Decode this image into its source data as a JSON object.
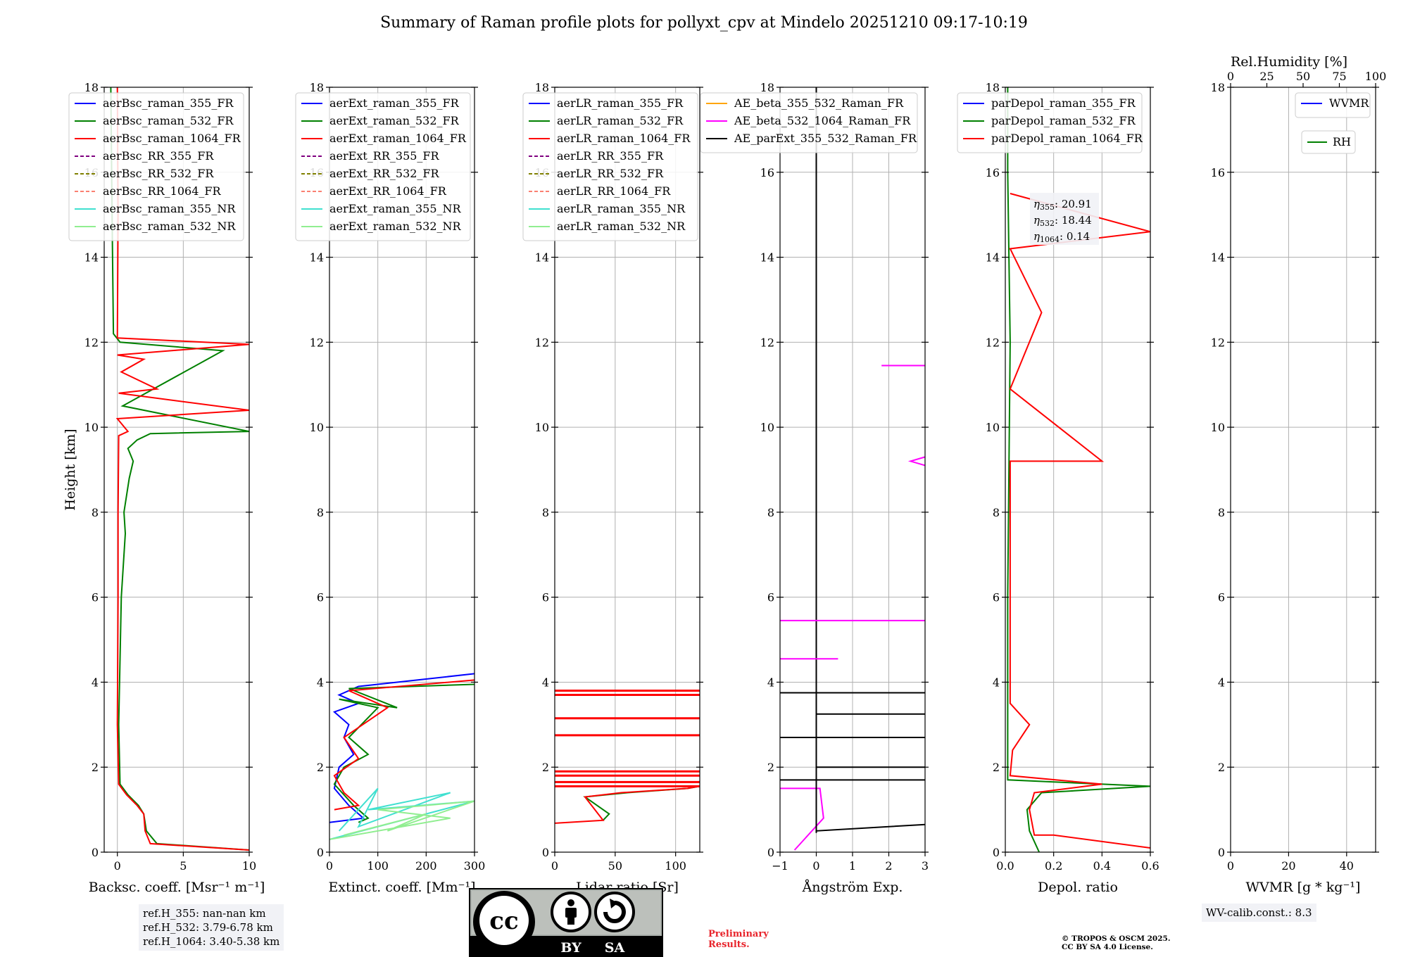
{
  "figure_title": "Summary of Raman profile plots for pollyxt_cpv at Mindelo 20251210 09:17-10:19",
  "colors": {
    "c355": "#0000ff",
    "c532": "#008000",
    "c1064": "#ff0000",
    "rr355": "#800080",
    "rr532": "#808000",
    "rr1064": "#fa8072",
    "nr355": "#40e0d0",
    "nr532": "#90ee90",
    "ae1": "#ffa500",
    "ae2": "#ff00ff",
    "ae3": "#000000",
    "prelim": "#e8242b"
  },
  "chart_data": [
    {
      "type": "line",
      "id": "bsc",
      "xlabel": "Backsc. coeff. [Msr⁻¹ m⁻¹]",
      "ylabel": "Height [km]",
      "xlim": [
        -1,
        10
      ],
      "ylim": [
        0,
        18
      ],
      "xticks": [
        0,
        5,
        10
      ],
      "xtick_labels": [
        "0",
        "5",
        "10"
      ],
      "yticks": [
        0,
        2,
        4,
        6,
        8,
        10,
        12,
        14,
        16,
        18
      ],
      "ytick_labels": [
        "0",
        "2",
        "4",
        "6",
        "8",
        "10",
        "12",
        "14",
        "16",
        "18"
      ],
      "legend": [
        "aerBsc_raman_355_FR",
        "aerBsc_raman_532_FR",
        "aerBsc_raman_1064_FR",
        "aerBsc_RR_355_FR",
        "aerBsc_RR_532_FR",
        "aerBsc_RR_1064_FR",
        "aerBsc_raman_355_NR",
        "aerBsc_raman_532_NR"
      ],
      "series": [
        {
          "name": "aerBsc_raman_532_FR",
          "color": "#008000",
          "x": [
            10,
            3,
            2.2,
            2.0,
            1.6,
            0.8,
            0.2,
            0.1,
            0.3,
            0.6,
            0.5,
            0.9,
            1.2,
            0.8,
            1.5,
            2.5,
            10,
            0.4,
            8,
            0.2,
            -0.3,
            -0.4,
            -0.5
          ],
          "y": [
            0.05,
            0.2,
            0.5,
            0.9,
            1.1,
            1.35,
            1.6,
            3,
            6,
            7.5,
            8,
            8.8,
            9.2,
            9.5,
            9.7,
            9.85,
            9.9,
            10.5,
            11.8,
            12,
            12.2,
            15,
            18
          ]
        },
        {
          "name": "aerBsc_raman_1064_FR",
          "color": "#ff0000",
          "x": [
            10,
            2.5,
            2.1,
            2.0,
            1.5,
            0.7,
            0.1,
            0,
            0.05,
            0.05,
            0.1,
            0.8,
            0,
            10,
            0.1,
            3,
            0.3,
            2,
            0,
            10,
            0,
            0.05,
            0
          ],
          "y": [
            0.05,
            0.2,
            0.5,
            0.9,
            1.1,
            1.35,
            1.6,
            3,
            6,
            8,
            9.8,
            9.9,
            10.2,
            10.4,
            10.8,
            10.9,
            11.3,
            11.6,
            11.7,
            11.95,
            12.1,
            15,
            18
          ]
        }
      ]
    },
    {
      "type": "line",
      "id": "ext",
      "xlabel": "Extinct. coeff. [Mm⁻¹]",
      "xlim": [
        0,
        300
      ],
      "ylim": [
        0,
        18
      ],
      "xticks": [
        0,
        100,
        200,
        300
      ],
      "xtick_labels": [
        "0",
        "100",
        "200",
        "300"
      ],
      "yticks": [
        0,
        2,
        4,
        6,
        8,
        10,
        12,
        14,
        16,
        18
      ],
      "ytick_labels": [
        "0",
        "2",
        "4",
        "6",
        "8",
        "10",
        "12",
        "14",
        "16",
        "18"
      ],
      "legend": [
        "aerExt_raman_355_FR",
        "aerExt_raman_532_FR",
        "aerExt_raman_1064_FR",
        "aerExt_RR_355_FR",
        "aerExt_RR_532_FR",
        "aerExt_RR_1064_FR",
        "aerExt_raman_355_NR",
        "aerExt_raman_532_NR"
      ],
      "series": [
        {
          "name": "aerExt_raman_355_FR",
          "color": "#0000ff",
          "x": [
            0,
            70,
            40,
            10,
            20,
            50,
            30,
            40,
            10,
            60,
            20,
            60,
            300
          ],
          "y": [
            0.7,
            0.8,
            1.1,
            1.5,
            2.0,
            2.3,
            2.7,
            3.0,
            3.3,
            3.5,
            3.7,
            3.9,
            4.2
          ]
        },
        {
          "name": "aerExt_raman_532_FR",
          "color": "#008000",
          "x": [
            60,
            80,
            50,
            10,
            30,
            80,
            40,
            100,
            20,
            140,
            40,
            300
          ],
          "y": [
            0.7,
            0.8,
            1.1,
            1.6,
            2.0,
            2.3,
            2.7,
            3.4,
            3.6,
            3.4,
            3.85,
            3.95
          ]
        },
        {
          "name": "aerExt_raman_1064_FR",
          "color": "#ff0000",
          "x": [
            10,
            60,
            30,
            10,
            60,
            30,
            120,
            40,
            300
          ],
          "y": [
            1.0,
            1.1,
            1.4,
            1.8,
            2.2,
            2.7,
            3.4,
            3.8,
            4.05
          ]
        },
        {
          "name": "aerExt_raman_355_NR",
          "color": "#40e0d0",
          "x": [
            0,
            300,
            80,
            250,
            60,
            100,
            20
          ],
          "y": [
            0.3,
            1.2,
            1.0,
            1.4,
            0.6,
            1.5,
            0.5
          ]
        },
        {
          "name": "aerExt_raman_532_NR",
          "color": "#90ee90",
          "x": [
            0,
            250,
            100,
            300,
            120,
            200,
            30
          ],
          "y": [
            0.3,
            0.8,
            1.0,
            1.2,
            0.5,
            0.9,
            0.4
          ]
        }
      ]
    },
    {
      "type": "line",
      "id": "lr",
      "xlabel": "Lidar ratio [Sr]",
      "xlim": [
        0,
        120
      ],
      "ylim": [
        0,
        18
      ],
      "xticks": [
        0,
        50,
        100
      ],
      "xtick_labels": [
        "0",
        "50",
        "100"
      ],
      "yticks": [
        0,
        2,
        4,
        6,
        8,
        10,
        12,
        14,
        16,
        18
      ],
      "ytick_labels": [
        "0",
        "2",
        "4",
        "6",
        "8",
        "10",
        "12",
        "14",
        "16",
        "18"
      ],
      "legend": [
        "aerLR_raman_355_FR",
        "aerLR_raman_532_FR",
        "aerLR_raman_1064_FR",
        "aerLR_RR_355_FR",
        "aerLR_RR_532_FR",
        "aerLR_RR_1064_FR",
        "aerLR_raman_355_NR",
        "aerLR_raman_532_NR"
      ],
      "hlines": [
        1.55,
        1.65,
        1.8,
        1.9,
        2.75,
        3.15,
        3.7,
        3.8
      ],
      "series": [
        {
          "name": "aerLR_raman_532_FR",
          "color": "#008000",
          "x": [
            40,
            45,
            25,
            60,
            110,
            120
          ],
          "y": [
            0.75,
            0.9,
            1.3,
            1.4,
            1.5,
            1.55
          ]
        },
        {
          "name": "aerLR_raman_1064_FR",
          "color": "#ff0000",
          "x": [
            0,
            40,
            25,
            55,
            110,
            120
          ],
          "y": [
            0.68,
            0.75,
            1.3,
            1.4,
            1.5,
            1.55
          ]
        }
      ]
    },
    {
      "type": "line",
      "id": "ae",
      "xlabel": "Ångström Exp.",
      "xlim": [
        -1,
        3
      ],
      "ylim": [
        0,
        18
      ],
      "xticks": [
        -1,
        0,
        1,
        2,
        3
      ],
      "xtick_labels": [
        "−1",
        "0",
        "1",
        "2",
        "3"
      ],
      "yticks": [
        0,
        2,
        4,
        6,
        8,
        10,
        12,
        14,
        16,
        18
      ],
      "ytick_labels": [
        "0",
        "2",
        "4",
        "6",
        "8",
        "10",
        "12",
        "14",
        "16",
        "18"
      ],
      "legend": [
        "AE_beta_355_532_Raman_FR",
        "AE_beta_532_1064_Raman_FR",
        "AE_parExt_355_532_Raman_FR"
      ],
      "series": [
        {
          "name": "AE_beta_532_1064_Raman_FR",
          "color": "#ff00ff",
          "x": [
            -0.6,
            0.2,
            0.1,
            -1
          ],
          "y": [
            0.05,
            0.8,
            1.5,
            1.5
          ]
        },
        {
          "name": "AE_parExt_355_532_Raman_FR",
          "color": "#000000",
          "x": [
            0,
            0,
            3
          ],
          "y": [
            0.45,
            0.5,
            0.65
          ]
        },
        {
          "name": "AE_parExt_355_532_Raman_FR",
          "color": "#000000",
          "x": [
            0,
            0,
            0
          ],
          "y": [
            0.5,
            4.6,
            18
          ]
        }
      ]
    },
    {
      "type": "line",
      "id": "depol",
      "xlabel": "Depol. ratio",
      "xlim": [
        0,
        0.6
      ],
      "ylim": [
        0,
        18
      ],
      "xticks": [
        0,
        0.2,
        0.4,
        0.6
      ],
      "xtick_labels": [
        "0.0",
        "0.2",
        "0.4",
        "0.6"
      ],
      "yticks": [
        0,
        2,
        4,
        6,
        8,
        10,
        12,
        14,
        16,
        18
      ],
      "ytick_labels": [
        "0",
        "2",
        "4",
        "6",
        "8",
        "10",
        "12",
        "14",
        "16",
        "18"
      ],
      "legend": [
        "parDepol_raman_355_FR",
        "parDepol_raman_532_FR",
        "parDepol_raman_1064_FR"
      ],
      "annotation": [
        {
          "label": "η",
          "sub": "355",
          "value": ": 20.91"
        },
        {
          "label": "η",
          "sub": "532",
          "value": ": 18.44"
        },
        {
          "label": "η",
          "sub": "1064",
          "value": ": 0.14"
        }
      ],
      "series": [
        {
          "name": "parDepol_raman_532_FR",
          "color": "#008000",
          "x": [
            0.14,
            0.1,
            0.09,
            0.15,
            0.6,
            0.01,
            0.01,
            0.02,
            0.01,
            0.01
          ],
          "y": [
            0,
            0.5,
            1.0,
            1.4,
            1.55,
            1.7,
            6,
            12,
            16,
            18
          ]
        },
        {
          "name": "parDepol_raman_1064_FR",
          "color": "#ff0000",
          "x": [
            0.6,
            0.2,
            0.12,
            0.1,
            0.12,
            0.4,
            0.02,
            0.03,
            0.1,
            0.02,
            0.02,
            0.4,
            0.02,
            0.15,
            0.02,
            0.6,
            0.02
          ],
          "y": [
            0.1,
            0.4,
            0.4,
            1.0,
            1.4,
            1.6,
            1.8,
            2.4,
            3.0,
            3.5,
            9.2,
            9.2,
            10.9,
            12.7,
            14.2,
            14.6,
            15.5
          ]
        }
      ]
    },
    {
      "type": "line",
      "id": "wvmr",
      "xlabel": "WVMR [g * kg⁻¹]",
      "xlim": [
        0,
        50
      ],
      "ylim": [
        0,
        18
      ],
      "xticks": [
        0,
        20,
        40
      ],
      "xtick_labels": [
        "0",
        "20",
        "40"
      ],
      "yticks": [
        0,
        2,
        4,
        6,
        8,
        10,
        12,
        14,
        16,
        18
      ],
      "ytick_labels": [
        "0",
        "2",
        "4",
        "6",
        "8",
        "10",
        "12",
        "14",
        "16",
        "18"
      ],
      "top_axis": {
        "label": "Rel.Humidity [%]",
        "ticks": [
          0,
          25,
          50,
          75,
          100
        ],
        "tick_labels": [
          "0",
          "25",
          "50",
          "75",
          "100"
        ]
      },
      "legend": [
        "WVMR"
      ],
      "legend2": [
        "RH"
      ],
      "series": []
    }
  ],
  "info": {
    "refh_355": "ref.H_355: nan-nan km",
    "refh_532": "ref.H_532: 3.79-6.78 km",
    "refh_1064": "ref.H_1064: 3.40-5.38 km",
    "wv_calib": "WV-calib.const.: 8.3",
    "preliminary_1": "Preliminary",
    "preliminary_2": "Results.",
    "copyright_1": "© TROPOS & OSCM 2025.",
    "copyright_2": "CC BY SA 4.0 License."
  },
  "license_badge": {
    "cc": "cc",
    "by": "BY",
    "sa": "SA"
  }
}
